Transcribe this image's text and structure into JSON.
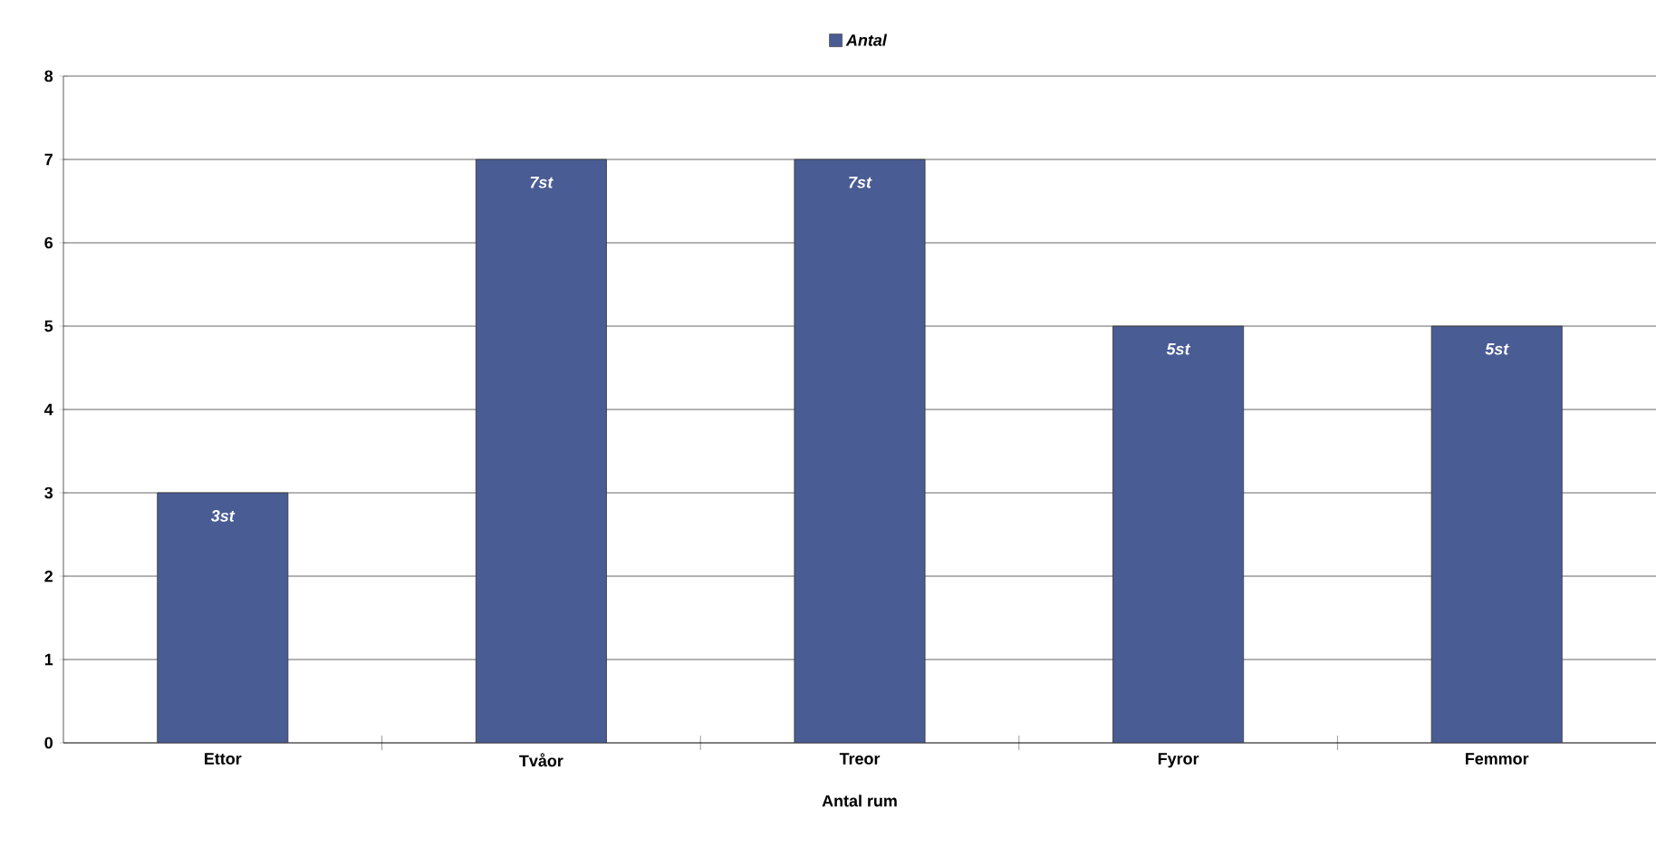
{
  "chart_data": {
    "type": "bar",
    "xlabel": "Antal rum",
    "categories": [
      "Ettor",
      "Tvåor",
      "Treor",
      "Fyror",
      "Femmor"
    ],
    "series": [
      {
        "name": "Antal",
        "color": "#4a5c94",
        "values": [
          3,
          7,
          7,
          5,
          5
        ],
        "value_labels": [
          "3st",
          "7st",
          "7st",
          "5st",
          "5st"
        ]
      }
    ],
    "ylim": [
      0,
      8
    ],
    "yticks": [
      0,
      1,
      2,
      3,
      4,
      5,
      6,
      7,
      8
    ],
    "grid": "y",
    "legend": "top"
  }
}
